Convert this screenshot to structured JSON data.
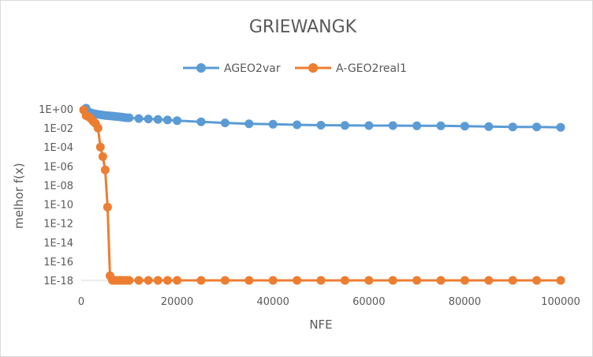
{
  "chart_data": {
    "type": "line",
    "title": "GRIEWANGK",
    "xlabel": "NFE",
    "ylabel": "melhor f(x)",
    "xlim": [
      0,
      100000
    ],
    "ylim_log10": [
      -18,
      0
    ],
    "y_scale": "log",
    "x_ticks": [
      "0",
      "20000",
      "40000",
      "60000",
      "80000",
      "100000"
    ],
    "y_ticks": [
      "1E+00",
      "1E-02",
      "1E-04",
      "1E-06",
      "1E-08",
      "1E-10",
      "1E-12",
      "1E-14",
      "1E-16",
      "1E-18"
    ],
    "legend_position": "top",
    "grid": false,
    "series": [
      {
        "name": "AGEO2var",
        "color": "#5b9bd5",
        "x": [
          1000,
          1500,
          2000,
          2500,
          3000,
          3500,
          4000,
          4500,
          5000,
          5500,
          6000,
          6500,
          7000,
          7500,
          8000,
          8500,
          9000,
          9500,
          10000,
          12000,
          14000,
          16000,
          18000,
          20000,
          25000,
          30000,
          35000,
          40000,
          45000,
          50000,
          55000,
          60000,
          65000,
          70000,
          75000,
          80000,
          85000,
          90000,
          95000,
          100000
        ],
        "y": [
          1.2,
          0.5,
          0.4,
          0.33,
          0.3,
          0.27,
          0.25,
          0.23,
          0.21,
          0.2,
          0.19,
          0.18,
          0.17,
          0.16,
          0.15,
          0.14,
          0.13,
          0.12,
          0.12,
          0.1,
          0.09,
          0.08,
          0.07,
          0.06,
          0.045,
          0.035,
          0.028,
          0.025,
          0.022,
          0.02,
          0.019,
          0.018,
          0.018,
          0.017,
          0.017,
          0.016,
          0.014,
          0.013,
          0.013,
          0.012
        ]
      },
      {
        "name": "A-GEO2real1",
        "color": "#ed7d31",
        "x": [
          500,
          1000,
          1500,
          2000,
          2500,
          3000,
          3500,
          4000,
          4500,
          5000,
          5500,
          6000,
          6500,
          7000,
          7500,
          8000,
          8500,
          9000,
          9500,
          10000,
          12000,
          14000,
          16000,
          18000,
          20000,
          25000,
          30000,
          35000,
          40000,
          45000,
          50000,
          55000,
          60000,
          65000,
          70000,
          75000,
          80000,
          85000,
          90000,
          95000,
          100000
        ],
        "y": [
          0.8,
          0.2,
          0.15,
          0.1,
          0.05,
          0.03,
          0.01,
          0.0001,
          1e-05,
          4e-07,
          5e-11,
          3e-18,
          1e-18,
          1e-18,
          1e-18,
          1e-18,
          1e-18,
          1e-18,
          1e-18,
          1e-18,
          1e-18,
          1e-18,
          1e-18,
          1e-18,
          1e-18,
          1e-18,
          1e-18,
          1e-18,
          1e-18,
          1e-18,
          1e-18,
          1e-18,
          1e-18,
          1e-18,
          1e-18,
          1e-18,
          1e-18,
          1e-18,
          1e-18,
          1e-18,
          1e-18
        ]
      }
    ]
  }
}
